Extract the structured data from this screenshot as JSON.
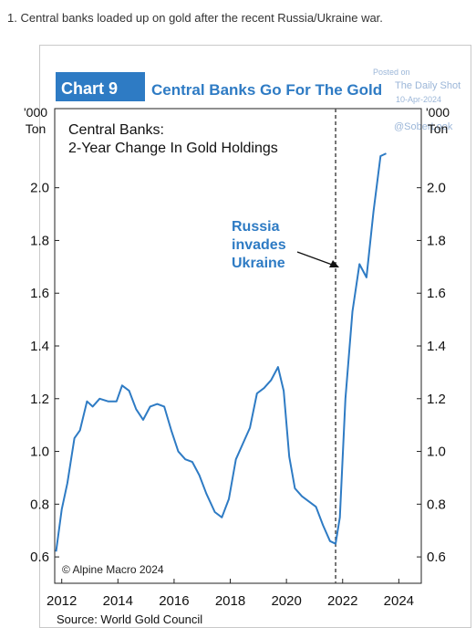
{
  "caption": "1. Central banks loaded up on gold after the recent Russia/Ukraine war.",
  "badge": "Chart 9",
  "title": "Central Banks Go For The Gold",
  "watermark": {
    "line1": "Posted on",
    "line2": "The Daily Shot",
    "line3": "10-Apr-2024",
    "line4": "@SoberLook"
  },
  "colors": {
    "badge_bg": "#2e7bc4",
    "title": "#2e7bc4",
    "line": "#2e7bc4",
    "annotation": "#2e7bc4"
  },
  "chart_data": {
    "type": "line",
    "inner_title": [
      "Central Banks:",
      "2-Year Change In Gold Holdings"
    ],
    "y_unit_left": [
      "'000",
      "Ton"
    ],
    "y_unit_right": [
      "'000",
      "Ton"
    ],
    "xlim": [
      2011.75,
      2024.8
    ],
    "ylim": [
      0.5,
      2.3
    ],
    "y_ticks": [
      0.6,
      0.8,
      1.0,
      1.2,
      1.4,
      1.6,
      1.8,
      2.0
    ],
    "y_tick_labels": [
      "0.6",
      "0.8",
      "1.0",
      "1.2",
      "1.4",
      "1.6",
      "1.8",
      "2.0"
    ],
    "x_ticks": [
      2012,
      2014,
      2016,
      2018,
      2020,
      2022,
      2024
    ],
    "x_tick_labels": [
      "2012",
      "2014",
      "2016",
      "2018",
      "2020",
      "2022",
      "2024"
    ],
    "event_line_x": 2021.75,
    "annotation": [
      "Russia",
      "invades",
      "Ukraine"
    ],
    "copyright": "© Alpine Macro 2024",
    "source": "Source: World Gold Council",
    "series": [
      {
        "x": [
          2011.8,
          2012.0,
          2012.2,
          2012.45,
          2012.65,
          2012.9,
          2013.1,
          2013.35,
          2013.65,
          2013.95,
          2014.15,
          2014.4,
          2014.65,
          2014.9,
          2015.15,
          2015.4,
          2015.65,
          2015.9,
          2016.15,
          2016.4,
          2016.65,
          2016.9,
          2017.15,
          2017.45,
          2017.7,
          2017.95,
          2018.2,
          2018.45,
          2018.7,
          2018.95,
          2019.2,
          2019.45,
          2019.7,
          2019.9,
          2020.1,
          2020.3,
          2020.55,
          2020.8,
          2021.05,
          2021.3,
          2021.55,
          2021.75,
          2021.9,
          2022.1,
          2022.35,
          2022.6,
          2022.85,
          2023.1,
          2023.35,
          2023.55
        ],
        "y": [
          0.62,
          0.78,
          0.88,
          1.05,
          1.08,
          1.19,
          1.17,
          1.2,
          1.19,
          1.19,
          1.25,
          1.23,
          1.16,
          1.12,
          1.17,
          1.18,
          1.17,
          1.08,
          1.0,
          0.97,
          0.96,
          0.91,
          0.84,
          0.77,
          0.75,
          0.82,
          0.97,
          1.03,
          1.09,
          1.22,
          1.24,
          1.27,
          1.32,
          1.23,
          0.98,
          0.86,
          0.83,
          0.81,
          0.79,
          0.72,
          0.66,
          0.65,
          0.75,
          1.2,
          1.53,
          1.71,
          1.66,
          1.91,
          2.12,
          2.13
        ]
      }
    ]
  }
}
